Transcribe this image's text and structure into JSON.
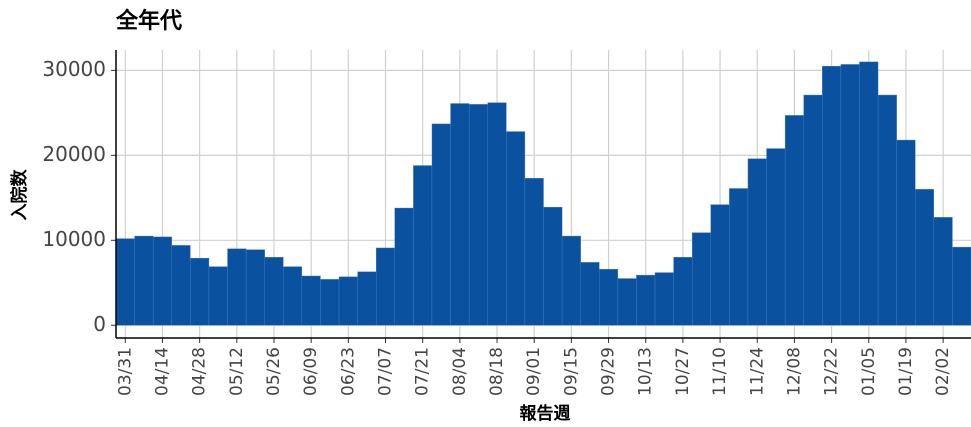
{
  "chart_data": {
    "type": "bar",
    "title": "全年代",
    "x_label": "報告週",
    "y_label": "入院数",
    "categories": [
      "03/31",
      null,
      "04/14",
      null,
      "04/28",
      null,
      "05/12",
      null,
      "05/26",
      null,
      "06/09",
      null,
      "06/23",
      null,
      "07/07",
      null,
      "07/21",
      null,
      "08/04",
      null,
      "08/18",
      null,
      "09/01",
      null,
      "09/15",
      null,
      "09/29",
      null,
      "10/13",
      null,
      "10/27",
      null,
      "11/10",
      null,
      "11/24",
      null,
      "12/08",
      null,
      "12/22",
      null,
      "01/05",
      null,
      "01/19",
      null,
      "02/02",
      null
    ],
    "values": [
      10200,
      10500,
      10400,
      9400,
      7900,
      6900,
      9000,
      8900,
      8000,
      6900,
      5800,
      5400,
      5700,
      6300,
      9100,
      13800,
      18800,
      23700,
      26100,
      26000,
      26200,
      22800,
      17300,
      13900,
      10500,
      7400,
      6600,
      5500,
      5900,
      6200,
      8000,
      10900,
      14200,
      16100,
      19600,
      20800,
      24700,
      27100,
      30500,
      30700,
      31000,
      27100,
      21800,
      16000,
      12700,
      9200
    ],
    "color": "#0a52a0",
    "ylim": [
      -1500,
      32400
    ],
    "yticks": [
      0,
      10000,
      20000,
      30000
    ],
    "grid": true
  }
}
